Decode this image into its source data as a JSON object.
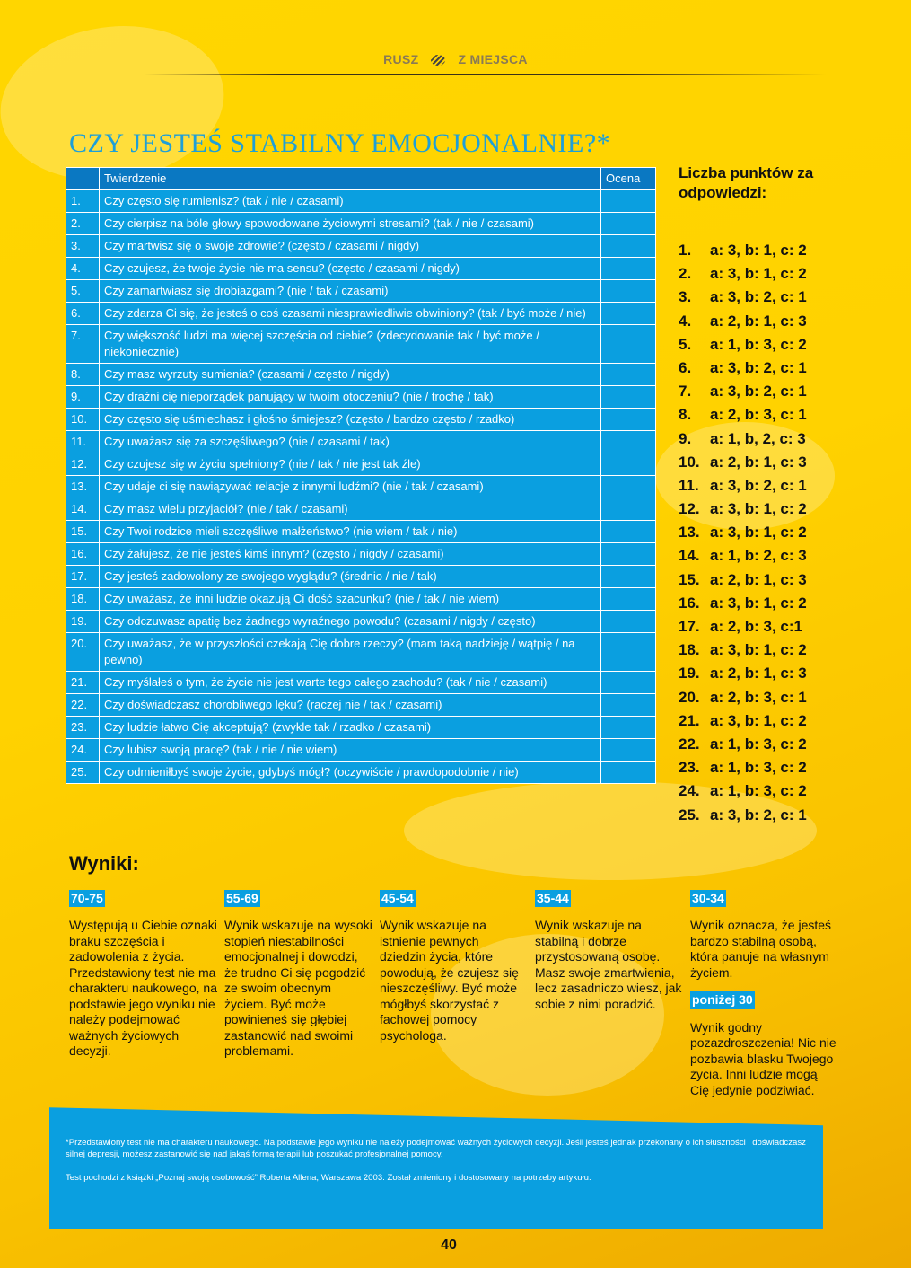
{
  "header": {
    "left": "RUSZ",
    "right": "Z MIEJSCA"
  },
  "title": "CZY JESTEŚ STABILNY EMOCJONALNIE?*",
  "table": {
    "headers": [
      "",
      "Twierdzenie",
      "Ocena"
    ],
    "rows": [
      {
        "n": "1.",
        "q": "Czy często się rumienisz? (tak / nie / czasami)"
      },
      {
        "n": "2.",
        "q": "Czy cierpisz na bóle głowy spowodowane życiowymi stresami? (tak / nie / czasami)"
      },
      {
        "n": "3.",
        "q": "Czy martwisz się o swoje zdrowie? (często / czasami / nigdy)"
      },
      {
        "n": "4.",
        "q": "Czy czujesz, że twoje życie nie ma sensu? (często / czasami / nigdy)"
      },
      {
        "n": "5.",
        "q": "Czy zamartwiasz się drobiazgami? (nie / tak / czasami)"
      },
      {
        "n": "6.",
        "q": "Czy zdarza Ci się, że jesteś o coś czasami niesprawiedliwie obwiniony? (tak / być może / nie)"
      },
      {
        "n": "7.",
        "q": "Czy większość ludzi ma więcej szczęścia od ciebie? (zdecydowanie tak / być może / niekoniecznie)"
      },
      {
        "n": "8.",
        "q": "Czy masz wyrzuty sumienia? (czasami / często / nigdy)"
      },
      {
        "n": "9.",
        "q": "Czy drażni cię nieporządek panujący w twoim otoczeniu? (nie / trochę / tak)"
      },
      {
        "n": "10.",
        "q": "Czy często się uśmiechasz i głośno śmiejesz? (często / bardzo często / rzadko)"
      },
      {
        "n": "11.",
        "q": "Czy uważasz się za szczęśliwego? (nie / czasami / tak)"
      },
      {
        "n": "12.",
        "q": "Czy czujesz się w życiu spełniony? (nie / tak / nie jest tak źle)"
      },
      {
        "n": "13.",
        "q": "Czy udaje ci się nawiązywać relacje z innymi ludźmi? (nie / tak / czasami)"
      },
      {
        "n": "14.",
        "q": "Czy masz wielu przyjaciół? (nie / tak / czasami)"
      },
      {
        "n": "15.",
        "q": "Czy Twoi rodzice mieli szczęśliwe małżeństwo? (nie wiem / tak / nie)"
      },
      {
        "n": "16.",
        "q": "Czy żałujesz, że nie jesteś kimś innym? (często / nigdy / czasami)"
      },
      {
        "n": "17.",
        "q": "Czy jesteś zadowolony ze swojego wyglądu? (średnio / nie / tak)"
      },
      {
        "n": "18.",
        "q": "Czy uważasz, że inni ludzie okazują Ci dość szacunku? (nie / tak / nie wiem)"
      },
      {
        "n": "19.",
        "q": "Czy odczuwasz apatię bez żadnego wyraźnego powodu? (czasami / nigdy / często)"
      },
      {
        "n": "20.",
        "q": "Czy uważasz, że w przyszłości czekają Cię dobre rzeczy? (mam taką nadzieję / wątpię / na pewno)"
      },
      {
        "n": "21.",
        "q": "Czy myślałeś o tym, że życie nie jest warte tego całego zachodu? (tak / nie / czasami)"
      },
      {
        "n": "22.",
        "q": "Czy doświadczasz chorobliwego lęku? (raczej nie / tak / czasami)"
      },
      {
        "n": "23.",
        "q": "Czy ludzie łatwo Cię akceptują? (zwykle tak / rzadko / czasami)"
      },
      {
        "n": "24.",
        "q": "Czy lubisz swoją pracę? (tak / nie / nie wiem)"
      },
      {
        "n": "25.",
        "q": "Czy odmieniłbyś swoje życie, gdybyś mógł? (oczywiście / prawdopodobnie / nie)"
      }
    ]
  },
  "scoring": {
    "title": "Liczba punktów za odpowiedzi:",
    "items": [
      {
        "n": "1.",
        "v": "a: 3, b: 1, c: 2"
      },
      {
        "n": "2.",
        "v": "a: 3, b: 1, c: 2"
      },
      {
        "n": "3.",
        "v": "a: 3, b: 2, c: 1"
      },
      {
        "n": "4.",
        "v": "a: 2, b: 1, c: 3"
      },
      {
        "n": "5.",
        "v": "a: 1, b: 3, c: 2"
      },
      {
        "n": "6.",
        "v": "a: 3, b: 2, c: 1"
      },
      {
        "n": "7.",
        "v": "a: 3, b: 2, c: 1"
      },
      {
        "n": "8.",
        "v": "a: 2, b: 3, c: 1"
      },
      {
        "n": "9.",
        "v": "a: 1, b, 2, c: 3"
      },
      {
        "n": "10.",
        "v": "a: 2, b: 1, c: 3"
      },
      {
        "n": "11.",
        "v": "a: 3, b: 2, c: 1"
      },
      {
        "n": "12.",
        "v": "a: 3, b: 1, c: 2"
      },
      {
        "n": "13.",
        "v": "a: 3, b: 1, c: 2"
      },
      {
        "n": "14.",
        "v": "a: 1, b: 2, c: 3"
      },
      {
        "n": "15.",
        "v": "a: 2, b: 1, c: 3"
      },
      {
        "n": "16.",
        "v": "a: 3, b: 1, c: 2"
      },
      {
        "n": "17.",
        "v": "a: 2, b: 3, c:1"
      },
      {
        "n": "18.",
        "v": "a: 3, b: 1, c: 2"
      },
      {
        "n": "19.",
        "v": "a: 2, b: 1, c: 3"
      },
      {
        "n": "20.",
        "v": "a: 2, b: 3, c: 1"
      },
      {
        "n": "21.",
        "v": "a: 3, b: 1, c: 2"
      },
      {
        "n": "22.",
        "v": "a: 1, b: 3, c: 2"
      },
      {
        "n": "23.",
        "v": "a: 1, b: 3, c: 2"
      },
      {
        "n": "24.",
        "v": "a: 1, b: 3, c: 2"
      },
      {
        "n": "25.",
        "v": "a: 3, b: 2, c: 1"
      }
    ]
  },
  "results": {
    "title": "Wyniki:",
    "cols": [
      {
        "range": "70-75",
        "text": "Występują u Ciebie oznaki braku szczęścia i zadowolenia z życia. Przedstawiony test nie ma charakteru naukowego, na podstawie jego wyniku nie należy podejmować ważnych życiowych decyzji."
      },
      {
        "range": "55-69",
        "text": "Wynik wskazuje na wysoki stopień niestabilności emocjonalnej i dowodzi, że trudno Ci się pogodzić ze swoim obecnym życiem. Być może powinieneś się głębiej zastanowić nad swoimi problemami."
      },
      {
        "range": "45-54",
        "text": "Wynik wskazuje na istnienie pewnych dziedzin życia, które powodują, że czujesz się nieszczęśliwy. Być może mógłbyś skorzystać z fachowej pomocy psychologa."
      },
      {
        "range": "35-44",
        "text": "Wynik wskazuje na stabilną i dobrze przystosowaną osobę. Masz swoje zmartwienia, lecz zasadniczo wiesz, jak sobie z nimi poradzić."
      },
      {
        "range": "30-34",
        "text": "Wynik oznacza, że jesteś bardzo stabilną osobą, która panuje na własnym życiem.",
        "range2": "poniżej 30",
        "text2": "Wynik godny pozazdroszczenia! Nic nie pozbawia blasku Twojego życia. Inni ludzie mogą Cię jedynie podziwiać."
      }
    ]
  },
  "footnote": {
    "p1": "*Przedstawiony test nie ma charakteru naukowego. Na podstawie jego wyniku nie należy podejmować ważnych życiowych decyzji. Jeśli jesteś jednak przekonany o ich słuszności i doświadczasz silnej depresji, możesz zastanowić się nad jakąś formą terapii lub poszukać profesjonalnej pomocy.",
    "p2": "Test pochodzi z książki „Poznaj swoją osobowość” Roberta Allena, Warszawa 2003. Został zmieniony i dostosowany na potrzeby artykułu."
  },
  "page_number": "40",
  "colors": {
    "background": "#ffd200",
    "table": "#0a9fe0",
    "table_header": "#0a78c2",
    "title": "#1e9fd8"
  }
}
